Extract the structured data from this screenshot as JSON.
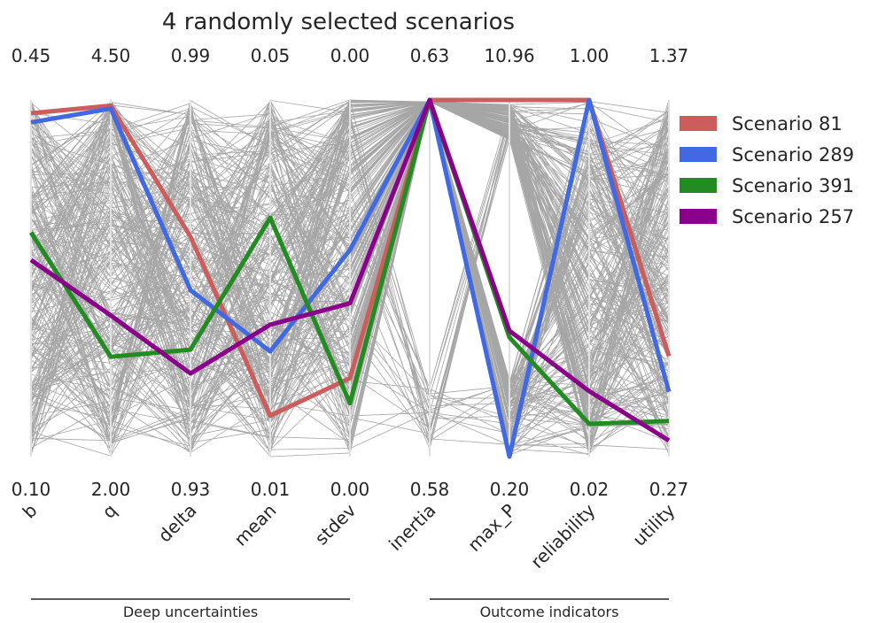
{
  "chart_data": {
    "type": "parallel_coordinates",
    "title": "4 randomly selected scenarios",
    "axes": [
      {
        "name": "b",
        "max_label": "0.45",
        "min_label": "0.10",
        "max": 0.45,
        "min": 0.1
      },
      {
        "name": "q",
        "max_label": "4.50",
        "min_label": "2.00",
        "max": 4.5,
        "min": 2.0
      },
      {
        "name": "delta",
        "max_label": "0.99",
        "min_label": "0.93",
        "max": 0.99,
        "min": 0.93
      },
      {
        "name": "mean",
        "max_label": "0.05",
        "min_label": "0.01",
        "max": 0.05,
        "min": 0.01
      },
      {
        "name": "stdev",
        "max_label": "0.00",
        "min_label": "0.00",
        "max": 0.001,
        "min": 0.0
      },
      {
        "name": "inertia",
        "max_label": "0.63",
        "min_label": "0.58",
        "max": 0.63,
        "min": 0.58
      },
      {
        "name": "max_P",
        "max_label": "10.96",
        "min_label": "0.20",
        "max": 10.96,
        "min": 0.2
      },
      {
        "name": "reliability",
        "max_label": "1.00",
        "min_label": "0.02",
        "max": 1.0,
        "min": 0.02
      },
      {
        "name": "utility",
        "max_label": "1.37",
        "min_label": "0.27",
        "max": 1.37,
        "min": 0.27
      }
    ],
    "groups": [
      {
        "label": "Deep uncertainties",
        "from_axis": 0,
        "to_axis": 4
      },
      {
        "label": "Outcome indicators",
        "from_axis": 5,
        "to_axis": 8
      }
    ],
    "series": [
      {
        "name": "Scenario 81",
        "color": "#cd5c5c",
        "values": [
          0.437,
          4.46,
          0.967,
          0.0146,
          0.00022,
          0.63,
          10.96,
          1.0,
          0.58
        ]
      },
      {
        "name": "Scenario 289",
        "color": "#4169e1",
        "values": [
          0.428,
          4.44,
          0.958,
          0.0218,
          0.00058,
          0.63,
          0.2,
          1.0,
          0.47
        ]
      },
      {
        "name": "Scenario 391",
        "color": "#228b22",
        "values": [
          0.32,
          2.7,
          0.948,
          0.0368,
          0.00015,
          0.63,
          3.8,
          0.11,
          0.38
        ]
      },
      {
        "name": "Scenario 257",
        "color": "#8b008b",
        "values": [
          0.293,
          2.99,
          0.944,
          0.0248,
          0.00043,
          0.63,
          4.0,
          0.2,
          0.32
        ]
      }
    ],
    "legend_position": "right",
    "background_lines_color": "#808080"
  }
}
